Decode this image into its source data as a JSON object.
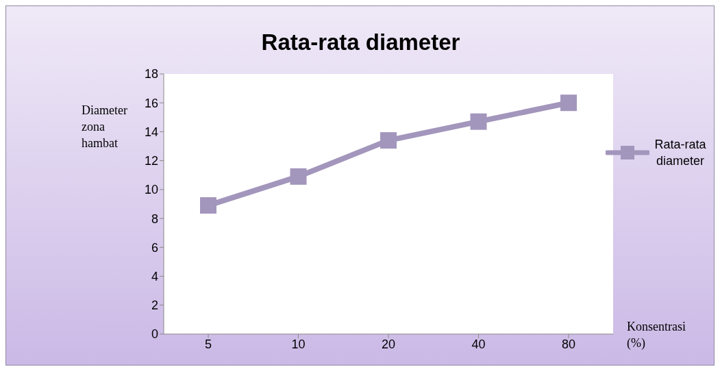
{
  "chart_data": {
    "type": "line",
    "title": "Rata-rata diameter",
    "xlabel": "Konsentrasi (%)",
    "ylabel": "Diameter zona hambat",
    "categories": [
      "5",
      "10",
      "20",
      "40",
      "80"
    ],
    "series": [
      {
        "name": "Rata-rata diameter",
        "color": "#a396bc",
        "values": [
          8.9,
          10.9,
          13.4,
          14.7,
          16
        ]
      }
    ],
    "ylim": [
      0,
      18
    ],
    "yticks": [
      0,
      2,
      4,
      6,
      8,
      10,
      12,
      14,
      16,
      18
    ],
    "legend": "right",
    "marker": "square",
    "line_style": "solid"
  }
}
